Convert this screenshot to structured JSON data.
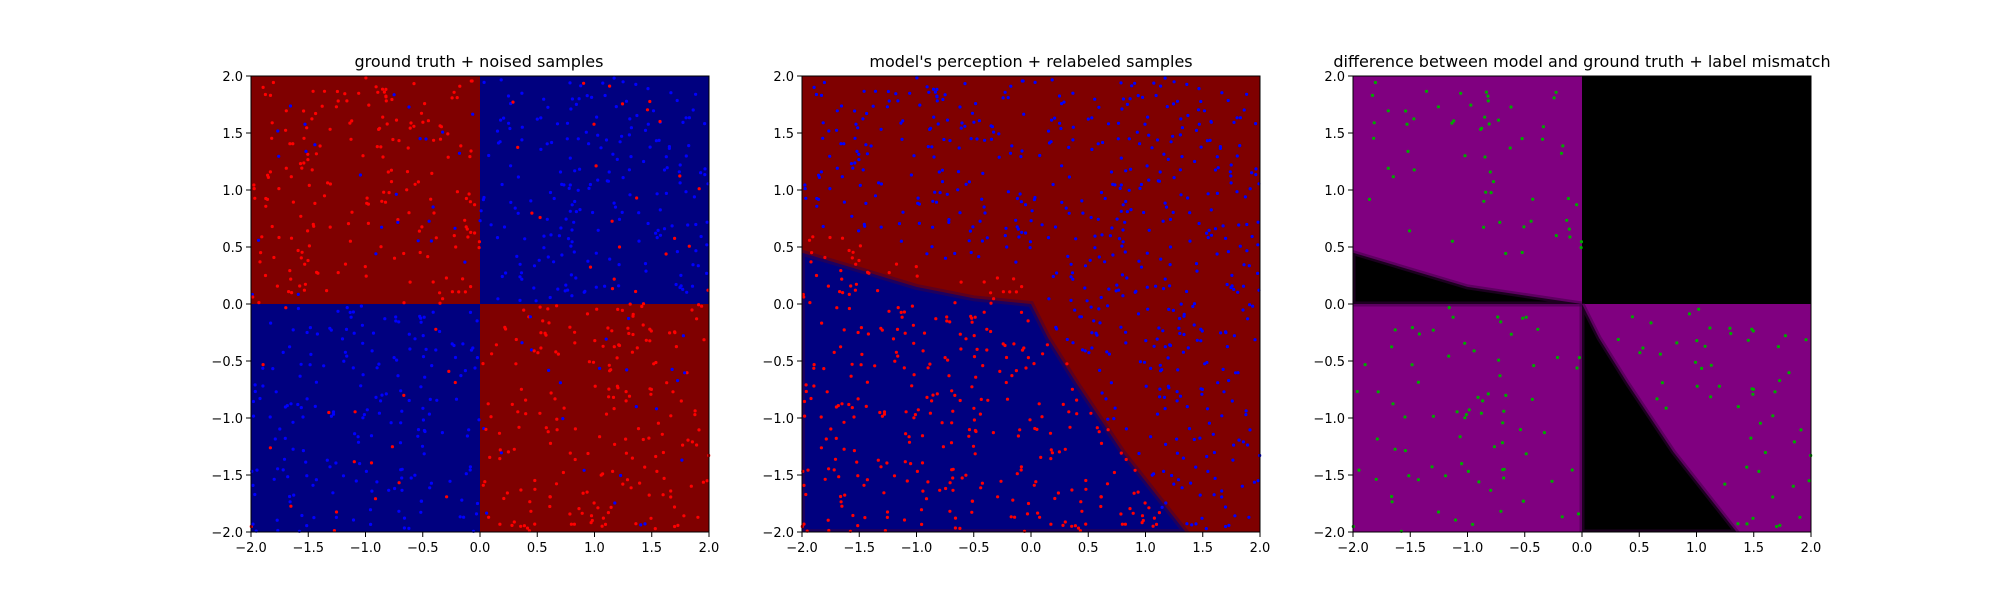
{
  "chart_data": [
    {
      "type": "scatter",
      "title": "ground truth + noised samples",
      "background": "quadrant",
      "xlim": [
        -2.0,
        2.0
      ],
      "ylim": [
        -2.0,
        2.0
      ],
      "xticks": [
        "−2.0",
        "−1.5",
        "−1.0",
        "−0.5",
        "0.0",
        "0.5",
        "1.0",
        "1.5",
        "2.0"
      ],
      "yticks": [
        "−2.0",
        "−1.5",
        "−1.0",
        "−0.5",
        "0.0",
        "0.5",
        "1.0",
        "1.5",
        "2.0"
      ],
      "grid": false,
      "colors": {
        "region_a": "#7f0000",
        "region_b": "#00007f",
        "point_a": "#ff0000",
        "point_b": "#0000ff"
      }
    },
    {
      "type": "scatter",
      "title": "model's perception + relabeled samples",
      "background": "model",
      "xlim": [
        -2.0,
        2.0
      ],
      "ylim": [
        -2.0,
        2.0
      ],
      "xticks": [
        "−2.0",
        "−1.5",
        "−1.0",
        "−0.5",
        "0.0",
        "0.5",
        "1.0",
        "1.5",
        "2.0"
      ],
      "yticks": [
        "−2.0",
        "−1.5",
        "−1.0",
        "−0.5",
        "0.0",
        "0.5",
        "1.0",
        "1.5",
        "2.0"
      ],
      "grid": false,
      "colors": {
        "region_a": "#7f0000",
        "region_b": "#00007f",
        "point_a": "#ff0000",
        "point_b": "#0000ff"
      }
    },
    {
      "type": "scatter",
      "title": "difference between model and ground truth + label mismatch",
      "background": "difference",
      "xlim": [
        -2.0,
        2.0
      ],
      "ylim": [
        -2.0,
        2.0
      ],
      "xticks": [
        "−2.0",
        "−1.5",
        "−1.0",
        "−0.5",
        "0.0",
        "0.5",
        "1.0",
        "1.5",
        "2.0"
      ],
      "yticks": [
        "−2.0",
        "−1.5",
        "−1.0",
        "−0.5",
        "0.0",
        "0.5",
        "1.0",
        "1.5",
        "2.0"
      ],
      "grid": false,
      "colors": {
        "region_a": "#800080",
        "region_b": "#000000",
        "point_a": "#00aa00"
      }
    }
  ]
}
